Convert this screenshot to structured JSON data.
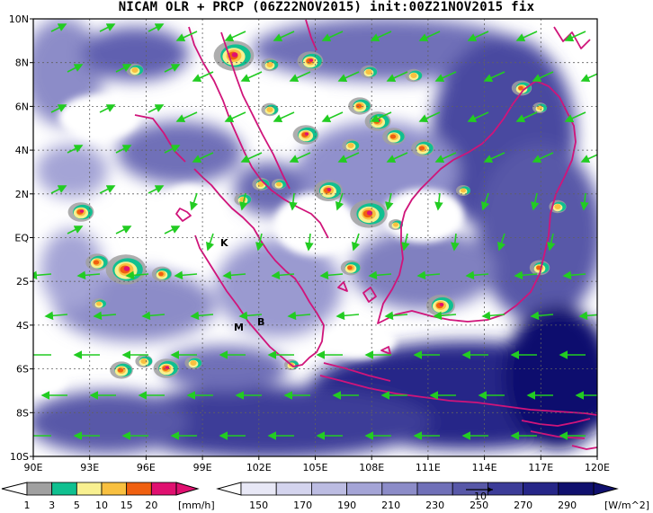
{
  "title": "NICAM OLR + PRCP (06Z22NOV2015) init:00Z21NOV2015 fix",
  "map": {
    "lon_range": [
      90,
      120
    ],
    "lat_range": [
      -10,
      10
    ],
    "x_ticks": [
      "90E",
      "93E",
      "96E",
      "99E",
      "102E",
      "105E",
      "108E",
      "111E",
      "114E",
      "117E",
      "120E"
    ],
    "y_ticks": [
      "10N",
      "8N",
      "6N",
      "4N",
      "2N",
      "EQ",
      "2S",
      "4S",
      "6S",
      "8S",
      "10S"
    ],
    "grid": "dotted",
    "colors": {
      "coastline": "#d0147a",
      "wind_vector": "#22cc22",
      "ocean_clear": "#ffffff"
    },
    "place_labels": [
      "K",
      "M",
      "B"
    ]
  },
  "colorbar_precip": {
    "labels": [
      "1",
      "3",
      "5",
      "10",
      "15",
      "20"
    ],
    "unit": "[mm/h]",
    "colors": [
      "#a0a0a0",
      "#10c090",
      "#f8f090",
      "#f8c040",
      "#f06010",
      "#e01070"
    ]
  },
  "colorbar_olr": {
    "labels": [
      "150",
      "170",
      "190",
      "210",
      "230",
      "250",
      "270",
      "290"
    ],
    "unit": "[W/m^2]",
    "colors": [
      "#ffffff",
      "#e8e8f6",
      "#d4d4ee",
      "#bcbce2",
      "#a4a4d6",
      "#8c8cc8",
      "#7070b8",
      "#5858a8",
      "#3c3c98",
      "#262688",
      "#10106e"
    ],
    "reference_vector": "10"
  }
}
